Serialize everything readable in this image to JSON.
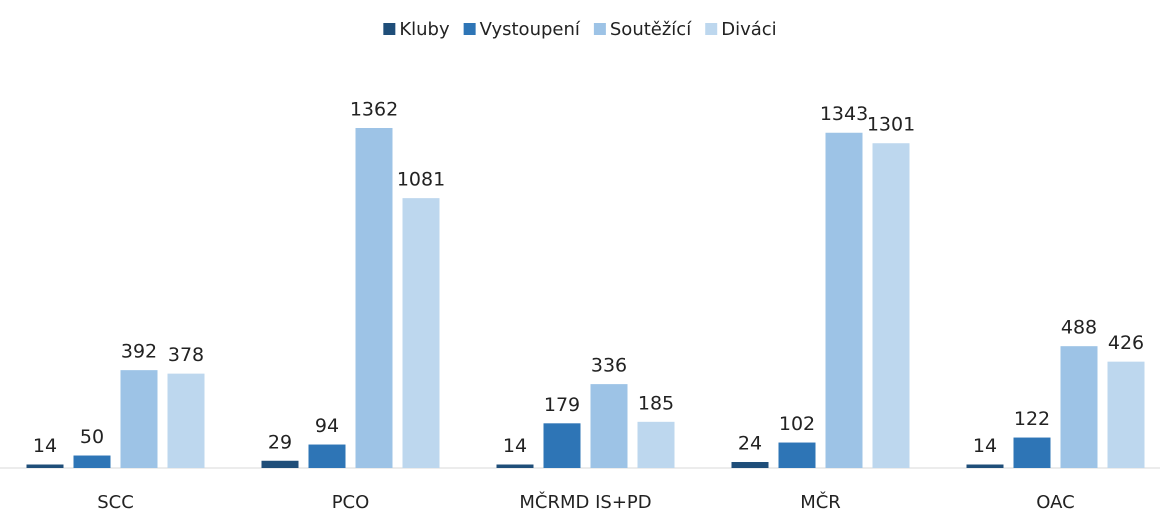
{
  "chart_data": {
    "type": "bar",
    "categories": [
      "SCC",
      "PCO",
      "MČRMD IS+PD",
      "MČR",
      "OAC"
    ],
    "series": [
      {
        "name": "Kluby",
        "color": "#1f4e79",
        "values": [
          14,
          29,
          14,
          24,
          14
        ]
      },
      {
        "name": "Vystoupení",
        "color": "#2e75b6",
        "values": [
          50,
          94,
          179,
          102,
          122
        ]
      },
      {
        "name": "Soutěžící",
        "color": "#9dc3e6",
        "values": [
          392,
          1362,
          336,
          1343,
          488
        ]
      },
      {
        "name": "Diváci",
        "color": "#bdd7ee",
        "values": [
          378,
          1081,
          185,
          1301,
          426
        ]
      }
    ],
    "legend": "top",
    "grid": false
  }
}
